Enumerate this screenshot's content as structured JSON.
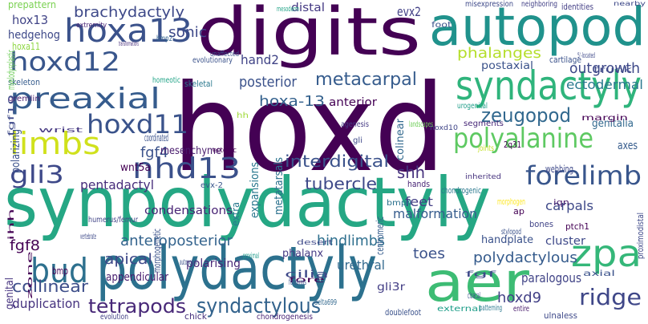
{
  "words": [
    {
      "text": "hoxd",
      "color": "#440154"
    },
    {
      "text": "synpolydactyly",
      "color": "#25a784"
    },
    {
      "text": "polydactyly",
      "color": "#2c718e"
    },
    {
      "text": "digits",
      "color": "#440154"
    },
    {
      "text": "autopod",
      "color": "#20928c"
    },
    {
      "text": "syndactyly",
      "color": "#2fb47c"
    },
    {
      "text": "aer",
      "color": "#3dbc74"
    },
    {
      "text": "zpa",
      "color": "#35b779"
    },
    {
      "text": "hoxa13",
      "color": "#3b528b"
    },
    {
      "text": "preaxial",
      "color": "#365c8d"
    },
    {
      "text": "hoxd12",
      "color": "#39568c"
    },
    {
      "text": "hoxd11",
      "color": "#3a538b"
    },
    {
      "text": "limbs",
      "color": "#d0e11c"
    },
    {
      "text": "nhd13",
      "color": "#3b518b"
    },
    {
      "text": "gli3",
      "color": "#3e4989"
    },
    {
      "text": "polyalanine",
      "color": "#5ec962"
    },
    {
      "text": "forelimb",
      "color": "#39568c"
    },
    {
      "text": "bud",
      "color": "#2d708e"
    },
    {
      "text": "syndactylous",
      "color": "#33638d"
    },
    {
      "text": "tetrapods",
      "color": "#482878"
    },
    {
      "text": "ridge",
      "color": "#3f4788"
    },
    {
      "text": "brachydactyly",
      "color": "#3e4989"
    },
    {
      "text": "metacarpal",
      "color": "#365c8d"
    },
    {
      "text": "zeugopod",
      "color": "#31688e"
    },
    {
      "text": "phalanges",
      "color": "#b5de2b"
    },
    {
      "text": "outgrowth",
      "color": "#3e4989"
    },
    {
      "text": "ectodermal",
      "color": "#2a788e"
    },
    {
      "text": "postaxial",
      "color": "#3b528b"
    },
    {
      "text": "hand2",
      "color": "#414487"
    },
    {
      "text": "distal",
      "color": "#443983"
    },
    {
      "text": "evx2",
      "color": "#424086"
    },
    {
      "text": "posterior",
      "color": "#3b528b"
    },
    {
      "text": "hoxa-13",
      "color": "#34618d"
    },
    {
      "text": "anterior",
      "color": "#440154"
    },
    {
      "text": "sonic",
      "color": "#3e4989"
    },
    {
      "text": "fgf4",
      "color": "#3b528b"
    },
    {
      "text": "interdigital",
      "color": "#3b528b"
    },
    {
      "text": "tubercle",
      "color": "#3e4989"
    },
    {
      "text": "shh",
      "color": "#46327e"
    },
    {
      "text": "feet",
      "color": "#433e85"
    },
    {
      "text": "malformation",
      "color": "#365c8d"
    },
    {
      "text": "carpals",
      "color": "#3e4989"
    },
    {
      "text": "pentadactyl",
      "color": "#472d7b"
    },
    {
      "text": "wnt5a",
      "color": "#440154"
    },
    {
      "text": "mesenchyme",
      "color": "#481a6c"
    },
    {
      "text": "condensations",
      "color": "#482475"
    },
    {
      "text": "expansions",
      "color": "#2a788e"
    },
    {
      "text": "metatarsals",
      "color": "#2c728e"
    },
    {
      "text": "colinear",
      "color": "#31688e"
    },
    {
      "text": "anteroposterior",
      "color": "#33638d"
    },
    {
      "text": "hindlimbs",
      "color": "#2e6f8e"
    },
    {
      "text": "toes",
      "color": "#3b528b"
    },
    {
      "text": "polydactylous",
      "color": "#365c8d"
    },
    {
      "text": "paralogous",
      "color": "#414487"
    },
    {
      "text": "apical",
      "color": "#3e4989"
    },
    {
      "text": "appendicular",
      "color": "#481f70"
    },
    {
      "text": "collinear",
      "color": "#3d4e8a"
    },
    {
      "text": "duplication",
      "color": "#46337f"
    },
    {
      "text": "fgf8",
      "color": "#440154"
    },
    {
      "text": "hoxd9",
      "color": "#424086"
    },
    {
      "text": "urethral",
      "color": "#31688e"
    },
    {
      "text": "polarising",
      "color": "#482576"
    },
    {
      "text": "handplate",
      "color": "#3b528b"
    },
    {
      "text": "cluster",
      "color": "#3e4989"
    },
    {
      "text": "phalanx",
      "color": "#443983"
    },
    {
      "text": "hox13",
      "color": "#414487"
    },
    {
      "text": "hedgehog",
      "color": "#3e4989"
    },
    {
      "text": "prepattern",
      "color": "#7ad151"
    },
    {
      "text": "extremity",
      "color": "#482475"
    },
    {
      "text": "gli3r",
      "color": "#433e85"
    },
    {
      "text": "doublefoot",
      "color": "#3b528b"
    },
    {
      "text": "evolution",
      "color": "#424086"
    },
    {
      "text": "chick",
      "color": "#46327e"
    },
    {
      "text": "chondrogenesis",
      "color": "#482475"
    },
    {
      "text": "ulnaless",
      "color": "#3e4989"
    },
    {
      "text": "bones",
      "color": "#414487"
    },
    {
      "text": "ptch1",
      "color": "#440154"
    },
    {
      "text": "iqn",
      "color": "#481a6c"
    },
    {
      "text": "ap",
      "color": "#440154"
    },
    {
      "text": "morphogen",
      "color": "#fde725"
    },
    {
      "text": "chondrogenic",
      "color": "#2a788e"
    },
    {
      "text": "webbing",
      "color": "#3e4989"
    },
    {
      "text": "genitalia",
      "color": "#31688e"
    },
    {
      "text": "axes",
      "color": "#365c8d"
    },
    {
      "text": "2q31",
      "color": "#440154"
    },
    {
      "text": "joints",
      "color": "#c2df23"
    },
    {
      "text": "cartilage",
      "color": "#3b528b"
    },
    {
      "text": "skeletal",
      "color": "#2a788e"
    },
    {
      "text": "evolutionary",
      "color": "#3b528b"
    },
    {
      "text": "homeotic",
      "color": "#20a386"
    },
    {
      "text": "skeleton",
      "color": "#365c8d"
    },
    {
      "text": "gremlin",
      "color": "#481f70"
    },
    {
      "text": "hoxa11",
      "color": "#8fd744"
    },
    {
      "text": "bmp2",
      "color": "#33638d"
    },
    {
      "text": "misexpression",
      "color": "#3e4989"
    },
    {
      "text": "neighboring",
      "color": "#424086"
    },
    {
      "text": "identities",
      "color": "#433e85"
    },
    {
      "text": "unaffected",
      "color": "#3b528b"
    },
    {
      "text": "myelodysplastic",
      "color": "#6ece58"
    },
    {
      "text": "polarizing",
      "color": "#3b528b"
    },
    {
      "text": "genital",
      "color": "#46337f"
    },
    {
      "text": "morphogenetic",
      "color": "#3b528b"
    },
    {
      "text": "centromeric",
      "color": "#365c8d"
    },
    {
      "text": "proximodistal",
      "color": "#3e4989"
    },
    {
      "text": "extra",
      "color": "#2a788e"
    },
    {
      "text": "humerus/femur",
      "color": "#414487"
    },
    {
      "text": "agenesis",
      "color": "#443983"
    },
    {
      "text": "ectopic",
      "color": "#440154"
    },
    {
      "text": "gli",
      "color": "#3e4989"
    },
    {
      "text": "hh",
      "color": "#a0da39"
    },
    {
      "text": "evx-2",
      "color": "#39568c"
    },
    {
      "text": "mesoderm",
      "color": "#20a386"
    },
    {
      "text": "bmp4",
      "color": "#2c718e"
    },
    {
      "text": "hoxd10",
      "color": "#404688"
    },
    {
      "text": "inherited",
      "color": "#46327e"
    },
    {
      "text": "landscapes",
      "color": "#6ece58"
    },
    {
      "text": "margin",
      "color": "#440154"
    },
    {
      "text": "urogenital",
      "color": "#1f9e89"
    },
    {
      "text": "proximal",
      "color": "#1f9a8a"
    },
    {
      "text": "fore",
      "color": "#440154"
    },
    {
      "text": "forearms",
      "color": "#3b528b"
    },
    {
      "text": "cilia",
      "color": "#3e4989"
    },
    {
      "text": "vertebrate",
      "color": "#3e4989"
    },
    {
      "text": "bmp",
      "color": "#440154"
    },
    {
      "text": "ihh",
      "color": "#440154"
    },
    {
      "text": "cloacal",
      "color": "#3b528b"
    },
    {
      "text": "fgf",
      "color": "#3e4989"
    },
    {
      "text": "external",
      "color": "#1f9e89"
    },
    {
      "text": "patterning",
      "color": "#2a788e"
    },
    {
      "text": "entire",
      "color": "#481a6c"
    },
    {
      "text": "foot",
      "color": "#3b528b"
    },
    {
      "text": "trunk",
      "color": "#3e4989"
    },
    {
      "text": "stylopod",
      "color": "#3b528b"
    },
    {
      "text": "hands",
      "color": "#482475"
    },
    {
      "text": "axial",
      "color": "#3b528b"
    },
    {
      "text": "delta699",
      "color": "#31688e"
    },
    {
      "text": "desert",
      "color": "#3e4989"
    },
    {
      "text": "segments",
      "color": "#482878"
    },
    {
      "text": "5'-located",
      "color": "#3e4989"
    },
    {
      "text": "wrist",
      "color": "#453882"
    },
    {
      "text": "coordinated",
      "color": "#3b528b"
    },
    {
      "text": "fgf10",
      "color": "#3e4989"
    },
    {
      "text": "autopodial",
      "color": "#3b528b"
    },
    {
      "text": "zone",
      "color": "#440154"
    },
    {
      "text": "transformations",
      "color": "#472d7b"
    },
    {
      "text": "nearby",
      "color": "#3e4989"
    },
    {
      "text": "asymmetry",
      "color": "#482475"
    }
  ]
}
